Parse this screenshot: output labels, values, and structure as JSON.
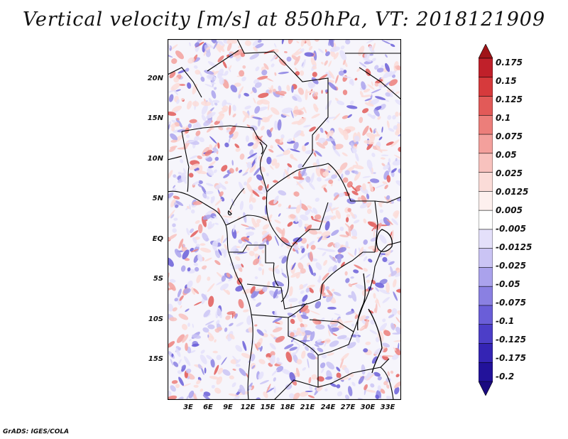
{
  "title": "Vertical velocity [m/s] at 850hPa, VT: 2018121909",
  "footer": "GrADS: IGES/COLA",
  "map": {
    "lat_range": [
      -20,
      25
    ],
    "lon_range": [
      0,
      35
    ],
    "lat_ticks": [
      "20N",
      "15N",
      "10N",
      "5N",
      "EQ",
      "5S",
      "10S",
      "15S"
    ],
    "lon_ticks": [
      "3E",
      "6E",
      "9E",
      "12E",
      "15E",
      "18E",
      "21E",
      "24E",
      "27E",
      "30E",
      "33E"
    ]
  },
  "colorbar": {
    "labels": [
      "0.175",
      "0.15",
      "0.125",
      "0.1",
      "0.075",
      "0.05",
      "0.025",
      "0.0125",
      "0.005",
      "-0.005",
      "-0.0125",
      "-0.025",
      "-0.05",
      "-0.075",
      "-0.1",
      "-0.125",
      "-0.175",
      "-0.2"
    ],
    "colors": [
      "#a01418",
      "#c0202a",
      "#d63a3c",
      "#e25a58",
      "#ec7e7a",
      "#f3a09c",
      "#f8c2be",
      "#fbdcd8",
      "#fdf0ee",
      "#ffffff",
      "#e4e0fa",
      "#cac4f4",
      "#aaa2ec",
      "#8a80e2",
      "#6a5ed8",
      "#4c3ec8",
      "#3424b4",
      "#22129a",
      "#1a0a80"
    ]
  }
}
